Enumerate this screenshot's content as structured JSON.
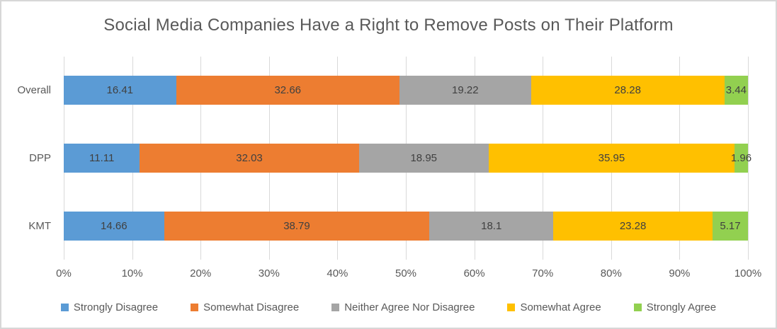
{
  "chart_data": {
    "type": "bar",
    "variant": "horizontal-stacked",
    "title": "Social Media Companies Have a Right to Remove Posts on Their Platform",
    "categories": [
      "Overall",
      "DPP",
      "KMT"
    ],
    "series": [
      {
        "name": "Strongly Disagree",
        "color": "#5B9BD5",
        "values": [
          16.41,
          11.11,
          14.66
        ]
      },
      {
        "name": "Somewhat Disagree",
        "color": "#ED7D31",
        "values": [
          32.66,
          32.03,
          38.79
        ]
      },
      {
        "name": "Neither Agree Nor Disagree",
        "color": "#A5A5A5",
        "values": [
          19.22,
          18.95,
          18.1
        ]
      },
      {
        "name": "Somewhat Agree",
        "color": "#FFC000",
        "values": [
          28.28,
          35.95,
          23.28
        ]
      },
      {
        "name": "Strongly Agree",
        "color": "#92D050",
        "values": [
          3.44,
          1.96,
          5.17
        ]
      }
    ],
    "x_axis": {
      "min": 0,
      "max": 100,
      "tick_labels": [
        "0%",
        "10%",
        "20%",
        "30%",
        "40%",
        "50%",
        "60%",
        "70%",
        "80%",
        "90%",
        "100%"
      ]
    },
    "grid": true,
    "legend_position": "bottom",
    "data_labels": true,
    "colors": {
      "title_text": "#595959",
      "axis_text": "#595959",
      "data_label_text": "#404040",
      "gridline": "#D9D9D9",
      "frame_border": "#D7D7D7",
      "background": "#FFFFFF"
    }
  }
}
